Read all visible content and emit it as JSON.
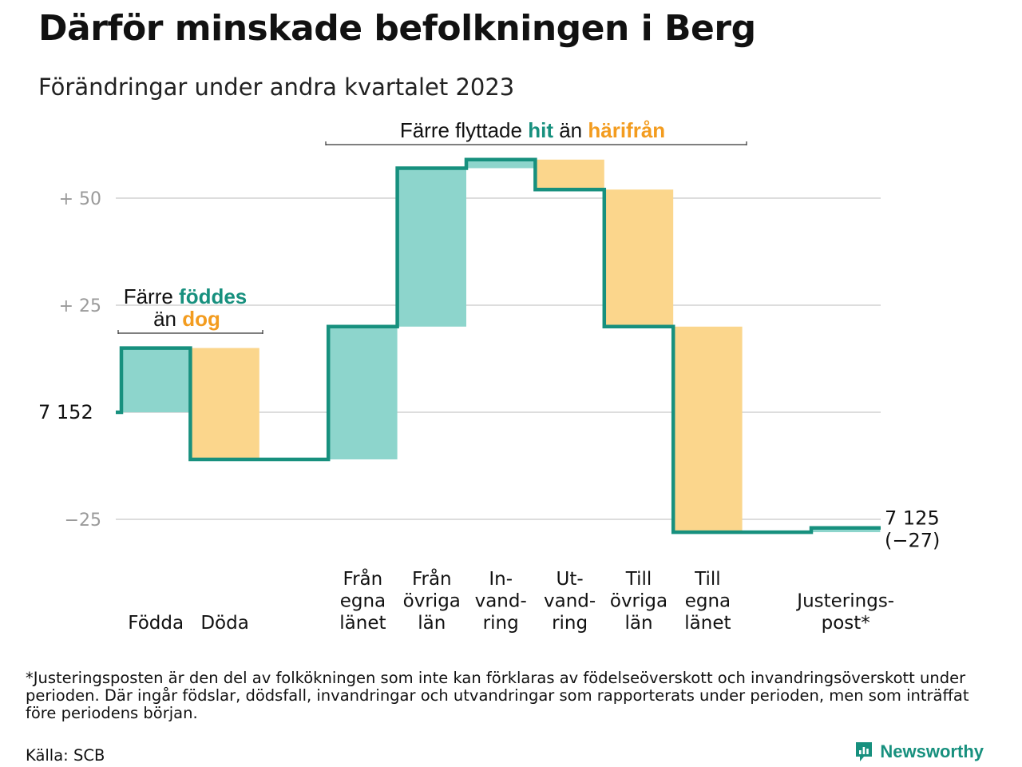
{
  "title": "Därför minskade befolkningen i Berg",
  "subtitle": "Förändringar under andra kvartalet 2023",
  "colors": {
    "positive": "#8dd5cc",
    "negative": "#fbd68c",
    "line": "#17907e",
    "accent_teal": "#17907e",
    "accent_orange": "#f39c1f",
    "grid": "#dddddd",
    "tick": "#9a9a9a"
  },
  "annotations": {
    "births": {
      "line1": "Färre ",
      "word1": "föddes",
      "line2": "än ",
      "word2": "dog"
    },
    "migration": {
      "text1": "Färre flyttade ",
      "word1": "hit",
      "text2": " än ",
      "word2": "härifrån"
    }
  },
  "chart_data": {
    "type": "waterfall",
    "title": "Därför minskade befolkningen i Berg",
    "subtitle": "Förändringar under andra kvartalet 2023",
    "start_value": 7152,
    "start_label": "7 152",
    "end_value": 7125,
    "end_label": "7 125",
    "end_change_label": "(−27)",
    "yticks": [
      {
        "value": 50,
        "label": "+  50"
      },
      {
        "value": 25,
        "label": "+  25"
      },
      {
        "value": -25,
        "label": "−25"
      }
    ],
    "ylim": [
      -35,
      60
    ],
    "steps": [
      {
        "label": [
          "Födda"
        ],
        "change": 15
      },
      {
        "label": [
          "Döda"
        ],
        "change": -26
      },
      {
        "label": [],
        "change": 0
      },
      {
        "label": [
          "Från",
          "egna",
          "länet"
        ],
        "change": 31
      },
      {
        "label": [
          "Från",
          "övriga",
          "län"
        ],
        "change": 37
      },
      {
        "label": [
          "In-",
          "vand-",
          "ring"
        ],
        "change": 2
      },
      {
        "label": [
          "Ut-",
          "vand-",
          "ring"
        ],
        "change": -7
      },
      {
        "label": [
          "Till",
          "övriga",
          "län"
        ],
        "change": -32
      },
      {
        "label": [
          "Till",
          "egna",
          "länet"
        ],
        "change": -48
      },
      {
        "label": [],
        "change": 0
      },
      {
        "label": [
          "Justerings-",
          "post*"
        ],
        "change": 1
      }
    ]
  },
  "footnote": "*Justeringsposten är den del av folkökningen som inte kan förklaras av födelseöverskott och invandringsöverskott under perioden. Där ingår födslar, dödsfall, invandringar och utvandringar som rapporterats under perioden, men som inträffat före periodens början.",
  "source": "Källa: SCB",
  "brand": "Newsworthy"
}
